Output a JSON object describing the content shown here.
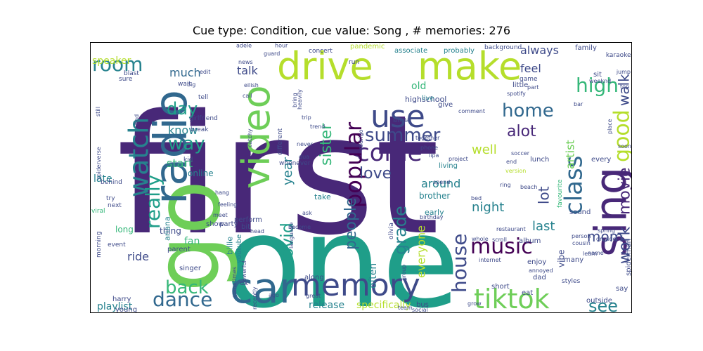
{
  "figure": {
    "title": "Cue type: Condition, cue value: Song , # memories: 276"
  },
  "palette": [
    "#440154",
    "#482878",
    "#3e4a89",
    "#31688e",
    "#26828e",
    "#1f9e89",
    "#35b779",
    "#6ece58",
    "#b5de2b",
    "#fde725"
  ],
  "words": [
    {
      "text": "first",
      "color": "#482878",
      "rot": 0
    },
    {
      "text": "one",
      "color": "#1f9e89",
      "rot": 0
    },
    {
      "text": "go",
      "color": "#6ece58",
      "rot": 90
    },
    {
      "text": "radio",
      "color": "#31688e",
      "rot": 90
    },
    {
      "text": "car",
      "color": "#31688e",
      "rot": 0
    },
    {
      "text": "memory",
      "color": "#3e4a89",
      "rot": 0
    },
    {
      "text": "drive",
      "color": "#b5de2b",
      "rot": 0
    },
    {
      "text": "make",
      "color": "#b5de2b",
      "rot": 0
    },
    {
      "text": "use",
      "color": "#3e4a89",
      "rot": 0
    },
    {
      "text": "sing",
      "color": "#482878",
      "rot": 90
    },
    {
      "text": "video",
      "color": "#6ece58",
      "rot": 90
    },
    {
      "text": "tiktok",
      "color": "#6ece58",
      "rot": 0
    },
    {
      "text": "music",
      "color": "#440154",
      "rot": 0
    },
    {
      "text": "come",
      "color": "#482878",
      "rot": 0
    },
    {
      "text": "summer",
      "color": "#3e4a89",
      "rot": 0
    },
    {
      "text": "watch",
      "color": "#26828e",
      "rot": 90
    },
    {
      "text": "home",
      "color": "#31688e",
      "rot": 0
    },
    {
      "text": "dance",
      "color": "#31688e",
      "rot": 0
    },
    {
      "text": "back",
      "color": "#35b779",
      "rot": 0
    },
    {
      "text": "popular",
      "color": "#440154",
      "rot": 90
    },
    {
      "text": "class",
      "color": "#31688e",
      "rot": 90
    },
    {
      "text": "house",
      "color": "#3e4a89",
      "rot": 90
    },
    {
      "text": "room",
      "color": "#26828e",
      "rot": 0
    },
    {
      "text": "high",
      "color": "#35b779",
      "rot": 0
    },
    {
      "text": "good",
      "color": "#b5de2b",
      "rot": 90
    },
    {
      "text": "alot",
      "color": "#482878",
      "rot": 0
    },
    {
      "text": "way",
      "color": "#1f9e89",
      "rot": 0
    },
    {
      "text": "really",
      "color": "#1f9e89",
      "rot": 90
    },
    {
      "text": "day",
      "color": "#1f9e89",
      "rot": 0
    },
    {
      "text": "love",
      "color": "#3e4a89",
      "rot": 0
    },
    {
      "text": "grade",
      "color": "#26828e",
      "rot": 90
    },
    {
      "text": "people",
      "color": "#31688e",
      "rot": 90
    },
    {
      "text": "covid",
      "color": "#1f9e89",
      "rot": 90
    },
    {
      "text": "sister",
      "color": "#35b779",
      "rot": 90
    },
    {
      "text": "year",
      "color": "#26828e",
      "rot": 90
    },
    {
      "text": "see",
      "color": "#26828e",
      "rot": 0
    },
    {
      "text": "work",
      "color": "#3e4a89",
      "rot": 90
    },
    {
      "text": "movie",
      "color": "#482878",
      "rot": 90
    },
    {
      "text": "walk",
      "color": "#3e4a89",
      "rot": 90
    },
    {
      "text": "lot",
      "color": "#3e4a89",
      "rot": 90
    },
    {
      "text": "mom",
      "color": "#3e4a89",
      "rot": 0
    },
    {
      "text": "night",
      "color": "#26828e",
      "rot": 0
    },
    {
      "text": "last",
      "color": "#26828e",
      "rot": 0
    },
    {
      "text": "well",
      "color": "#b5de2b",
      "rot": 0
    },
    {
      "text": "start",
      "color": "#35b779",
      "rot": 0
    },
    {
      "text": "know",
      "color": "#26828e",
      "rot": 0
    },
    {
      "text": "much",
      "color": "#31688e",
      "rot": 0
    },
    {
      "text": "feel",
      "color": "#3e4a89",
      "rot": 0
    },
    {
      "text": "always",
      "color": "#3e4a89",
      "rot": 0
    },
    {
      "text": "talk",
      "color": "#3e4a89",
      "rot": 0
    },
    {
      "text": "around",
      "color": "#26828e",
      "rot": 0
    },
    {
      "text": "everyone",
      "color": "#b5de2b",
      "rot": 90
    },
    {
      "text": "ride",
      "color": "#3e4a89",
      "rot": 0
    },
    {
      "text": "playlist",
      "color": "#26828e",
      "rot": 0
    },
    {
      "text": "release",
      "color": "#26828e",
      "rot": 0
    },
    {
      "text": "specifically",
      "color": "#b5de2b",
      "rot": 0
    },
    {
      "text": "speaker",
      "color": "#b5de2b",
      "rot": 0
    },
    {
      "text": "artist",
      "color": "#6ece58",
      "rot": 90
    },
    {
      "text": "late",
      "color": "#26828e",
      "rot": 0
    },
    {
      "text": "often",
      "color": "#26828e",
      "rot": 90
    },
    {
      "text": "old",
      "color": "#35b779",
      "rot": 0
    },
    {
      "text": "long",
      "color": "#35b779",
      "rot": 0
    },
    {
      "text": "fan",
      "color": "#35b779",
      "rot": 0
    },
    {
      "text": "thing",
      "color": "#3e4a89",
      "rot": 0
    },
    {
      "text": "online",
      "color": "#26828e",
      "rot": 0
    },
    {
      "text": "highschool",
      "color": "#3e4a89",
      "rot": 0
    },
    {
      "text": "associate",
      "color": "#26828e",
      "rot": 0
    },
    {
      "text": "probably",
      "color": "#26828e",
      "rot": 0
    },
    {
      "text": "ariana",
      "color": "#26828e",
      "rot": 90
    },
    {
      "text": "billie",
      "color": "#26828e",
      "rot": 90
    },
    {
      "text": "youtube",
      "color": "#26828e",
      "rot": 90
    },
    {
      "text": "take",
      "color": "#26828e",
      "rot": 0
    },
    {
      "text": "brother",
      "color": "#26828e",
      "rot": 0
    },
    {
      "text": "early",
      "color": "#26828e",
      "rot": 0
    },
    {
      "text": "live",
      "color": "#26828e",
      "rot": 0
    },
    {
      "text": "living",
      "color": "#26828e",
      "rot": 0
    },
    {
      "text": "give",
      "color": "#3e4a89",
      "rot": 0
    },
    {
      "text": "lunch",
      "color": "#3e4a89",
      "rot": 0
    },
    {
      "text": "every",
      "color": "#3e4a89",
      "rot": 0
    },
    {
      "text": "family",
      "color": "#3e4a89",
      "rot": 0
    },
    {
      "text": "sit",
      "color": "#3e4a89",
      "rot": 0
    },
    {
      "text": "little",
      "color": "#3e4a89",
      "rot": 0
    },
    {
      "text": "party",
      "color": "#3e4a89",
      "rot": 0
    },
    {
      "text": "perform",
      "color": "#3e4a89",
      "rot": 0
    },
    {
      "text": "bit",
      "color": "#3e4a89",
      "rot": 0
    },
    {
      "text": "show",
      "color": "#3e4a89",
      "rot": 0
    },
    {
      "text": "parent",
      "color": "#3e4a89",
      "rot": 0
    },
    {
      "text": "singer",
      "color": "#3e4a89",
      "rot": 0
    },
    {
      "text": "album",
      "color": "#3e4a89",
      "rot": 0
    },
    {
      "text": "enjoy",
      "color": "#3e4a89",
      "rot": 0
    },
    {
      "text": "dad",
      "color": "#3e4a89",
      "rot": 0
    },
    {
      "text": "sound",
      "color": "#3e4a89",
      "rot": 0
    },
    {
      "text": "many",
      "color": "#3e4a89",
      "rot": 0
    },
    {
      "text": "vibe",
      "color": "#3e4a89",
      "rot": 90
    },
    {
      "text": "eat",
      "color": "#3e4a89",
      "rot": 0
    },
    {
      "text": "short",
      "color": "#3e4a89",
      "rot": 0
    },
    {
      "text": "say",
      "color": "#3e4a89",
      "rot": 0
    },
    {
      "text": "outside",
      "color": "#3e4a89",
      "rot": 0
    },
    {
      "text": "spiderman",
      "color": "#3e4a89",
      "rot": 90
    },
    {
      "text": "bus",
      "color": "#3e4a89",
      "rot": 0
    },
    {
      "text": "along",
      "color": "#3e4a89",
      "rot": 0
    },
    {
      "text": "ex",
      "color": "#3e4a89",
      "rot": 0
    },
    {
      "text": "harry",
      "color": "#3e4a89",
      "rot": 0
    },
    {
      "text": "young",
      "color": "#3e4a89",
      "rot": 0
    },
    {
      "text": "morning",
      "color": "#3e4a89",
      "rot": 90
    },
    {
      "text": "event",
      "color": "#3e4a89",
      "rot": 0
    },
    {
      "text": "try",
      "color": "#3e4a89",
      "rot": 0
    },
    {
      "text": "next",
      "color": "#3e4a89",
      "rot": 0
    },
    {
      "text": "behind",
      "color": "#3e4a89",
      "rot": 0
    },
    {
      "text": "viral",
      "color": "#35b779",
      "rot": 0
    },
    {
      "text": "kid",
      "color": "#3e4a89",
      "rot": 0
    },
    {
      "text": "break",
      "color": "#3e4a89",
      "rot": 0
    },
    {
      "text": "girlfriend",
      "color": "#3e4a89",
      "rot": 0
    },
    {
      "text": "blast",
      "color": "#3e4a89",
      "rot": 0
    },
    {
      "text": "sure",
      "color": "#3e4a89",
      "rot": 0
    },
    {
      "text": "wait",
      "color": "#3e4a89",
      "rot": 0
    },
    {
      "text": "adele",
      "color": "#3e4a89",
      "rot": 0
    },
    {
      "text": "guard",
      "color": "#3e4a89",
      "rot": 0
    },
    {
      "text": "news",
      "color": "#3e4a89",
      "rot": 0
    },
    {
      "text": "concert",
      "color": "#3e4a89",
      "rot": 0
    },
    {
      "text": "pandemic",
      "color": "#b5de2b",
      "rot": 0
    },
    {
      "text": "run",
      "color": "#3e4a89",
      "rot": 0
    },
    {
      "text": "background",
      "color": "#3e4a89",
      "rot": 0
    },
    {
      "text": "game",
      "color": "#3e4a89",
      "rot": 0
    },
    {
      "text": "karaoke",
      "color": "#3e4a89",
      "rot": 0
    },
    {
      "text": "jump",
      "color": "#3e4a89",
      "rot": 0
    },
    {
      "text": "weeknd",
      "color": "#3e4a89",
      "rot": 0
    },
    {
      "text": "part",
      "color": "#3e4a89",
      "rot": 0
    },
    {
      "text": "spotify",
      "color": "#3e4a89",
      "rot": 0
    },
    {
      "text": "comment",
      "color": "#3e4a89",
      "rot": 0
    },
    {
      "text": "bar",
      "color": "#3e4a89",
      "rot": 0
    },
    {
      "text": "place",
      "color": "#3e4a89",
      "rot": 90
    },
    {
      "text": "soon",
      "color": "#3e4a89",
      "rot": 0
    },
    {
      "text": "soccer",
      "color": "#3e4a89",
      "rot": 0
    },
    {
      "text": "project",
      "color": "#3e4a89",
      "rot": 0
    },
    {
      "text": "end",
      "color": "#3e4a89",
      "rot": 0
    },
    {
      "text": "version",
      "color": "#b5de2b",
      "rot": 0
    },
    {
      "text": "ring",
      "color": "#3e4a89",
      "rot": 0
    },
    {
      "text": "beach",
      "color": "#3e4a89",
      "rot": 0
    },
    {
      "text": "favourite",
      "color": "#35b779",
      "rot": 90
    },
    {
      "text": "spring",
      "color": "#3e4a89",
      "rot": 0
    },
    {
      "text": "grande",
      "color": "#3e4a89",
      "rot": 0
    },
    {
      "text": "person",
      "color": "#3e4a89",
      "rot": 0
    },
    {
      "text": "cousin",
      "color": "#3e4a89",
      "rot": 0
    },
    {
      "text": "learn",
      "color": "#3e4a89",
      "rot": 0
    },
    {
      "text": "restaurant",
      "color": "#3e4a89",
      "rot": 0
    },
    {
      "text": "scroll",
      "color": "#3e4a89",
      "rot": 0
    },
    {
      "text": "whole",
      "color": "#3e4a89",
      "rot": 0
    },
    {
      "text": "internet",
      "color": "#3e4a89",
      "rot": 0
    },
    {
      "text": "styles",
      "color": "#3e4a89",
      "rot": 0
    },
    {
      "text": "annoyed",
      "color": "#3e4a89",
      "rot": 0
    },
    {
      "text": "grow",
      "color": "#3e4a89",
      "rot": 0
    },
    {
      "text": "social",
      "color": "#3e4a89",
      "rot": 0
    },
    {
      "text": "team",
      "color": "#3e4a89",
      "rot": 0
    },
    {
      "text": "great",
      "color": "#3e4a89",
      "rot": 0
    },
    {
      "text": "ago",
      "color": "#3e4a89",
      "rot": 0
    },
    {
      "text": "head",
      "color": "#3e4a89",
      "rot": 0
    },
    {
      "text": "meet",
      "color": "#3e4a89",
      "rot": 0
    },
    {
      "text": "hang",
      "color": "#3e4a89",
      "rot": 0
    },
    {
      "text": "feeling",
      "color": "#3e4a89",
      "rot": 0
    },
    {
      "text": "become",
      "color": "#3e4a89",
      "rot": 0
    },
    {
      "text": "language",
      "color": "#3e4a89",
      "rot": 90
    },
    {
      "text": "olivia",
      "color": "#3e4a89",
      "rot": 90
    },
    {
      "text": "whenever",
      "color": "#3e4a89",
      "rot": 0
    },
    {
      "text": "different",
      "color": "#3e4a89",
      "rot": 90
    },
    {
      "text": "catchy",
      "color": "#3e4a89",
      "rot": 90
    },
    {
      "text": "call",
      "color": "#3e4a89",
      "rot": 0
    },
    {
      "text": "tell",
      "color": "#3e4a89",
      "rot": 0
    },
    {
      "text": "eilish",
      "color": "#3e4a89",
      "rot": 0
    },
    {
      "text": "big",
      "color": "#3e4a89",
      "rot": 0
    },
    {
      "text": "edit",
      "color": "#3e4a89",
      "rot": 0
    },
    {
      "text": "trip",
      "color": "#3e4a89",
      "rot": 0
    },
    {
      "text": "never",
      "color": "#3e4a89",
      "rot": 0
    },
    {
      "text": "rodrigo",
      "color": "#3e4a89",
      "rot": 90
    },
    {
      "text": "together",
      "color": "#3e4a89",
      "rot": 0
    },
    {
      "text": "bring",
      "color": "#3e4a89",
      "rot": 90
    },
    {
      "text": "phone",
      "color": "#3e4a89",
      "rot": 0
    },
    {
      "text": "lipa",
      "color": "#3e4a89",
      "rot": 0
    },
    {
      "text": "dua",
      "color": "#3e4a89",
      "rot": 0
    },
    {
      "text": "spend",
      "color": "#3e4a89",
      "rot": 0
    },
    {
      "text": "birthday",
      "color": "#3e4a89",
      "rot": 0
    },
    {
      "text": "similar",
      "color": "#3e4a89",
      "rot": 0
    },
    {
      "text": "trend",
      "color": "#3e4a89",
      "rot": 0
    },
    {
      "text": "hour",
      "color": "#3e4a89",
      "rot": 0
    },
    {
      "text": "heavily",
      "color": "#3e4a89",
      "rot": 90
    },
    {
      "text": "spiderverse",
      "color": "#3e4a89",
      "rot": 90
    },
    {
      "text": "still",
      "color": "#3e4a89",
      "rot": 90
    },
    {
      "text": "find",
      "color": "#3e4a89",
      "rot": 90
    },
    {
      "text": "powerful",
      "color": "#3e4a89",
      "rot": 90
    },
    {
      "text": "sometimes",
      "color": "#3e4a89",
      "rot": 90
    },
    {
      "text": "recently",
      "color": "#3e4a89",
      "rot": 90
    },
    {
      "text": "ask",
      "color": "#3e4a89",
      "rot": 0
    },
    {
      "text": "group",
      "color": "#3e4a89",
      "rot": 90
    },
    {
      "text": "top",
      "color": "#3e4a89",
      "rot": 0
    },
    {
      "text": "name",
      "color": "#3e4a89",
      "rot": 0
    },
    {
      "text": "bed",
      "color": "#3e4a89",
      "rot": 0
    }
  ]
}
